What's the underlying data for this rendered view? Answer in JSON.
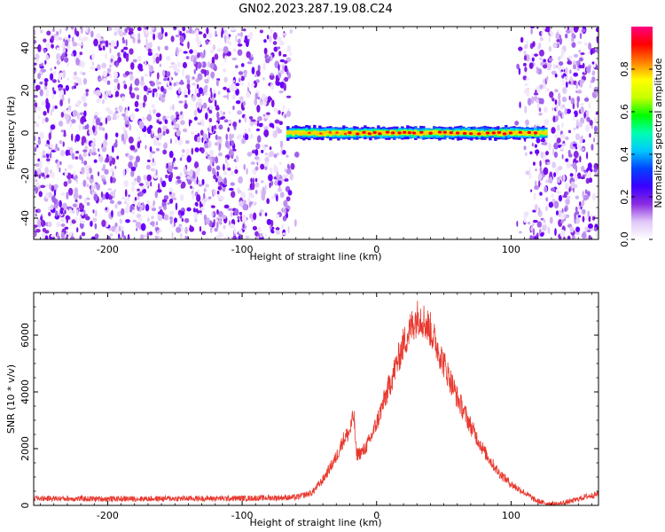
{
  "title": "GN02.2023.287.19.08.C24",
  "chart_data": [
    {
      "type": "heatmap",
      "xlabel": "Height of straight line (km)",
      "ylabel": "Frequency (Hz)",
      "xlim": [
        -255,
        165
      ],
      "ylim": [
        -50,
        50
      ],
      "xticks": [
        -200,
        -100,
        0,
        100
      ],
      "yticks": [
        -40,
        -20,
        0,
        20,
        40
      ],
      "blank_region_x": [
        -65,
        110
      ],
      "signal_band": {
        "x_start": -67,
        "x_end": 125,
        "frequency": 0,
        "peak_amplitude": 0.95
      },
      "colorbar": {
        "label": "Normalized spectral amplitude",
        "range": [
          0,
          1
        ],
        "ticks": [
          0.0,
          0.2,
          0.4,
          0.6,
          0.8
        ],
        "colors": [
          "#ffffff",
          "#e0c8f8",
          "#8a2be2",
          "#3a00ff",
          "#0044ff",
          "#00c8ff",
          "#00ffb0",
          "#00ff00",
          "#c8ff00",
          "#ffff00",
          "#ff7f00",
          "#ff0000",
          "#ff0080"
        ]
      }
    },
    {
      "type": "line",
      "xlabel": "Height of straight line (km)",
      "ylabel": "SNR (10 * v/v)",
      "xlim": [
        -255,
        165
      ],
      "ylim": [
        0,
        7500
      ],
      "xticks": [
        -200,
        -100,
        0,
        100
      ],
      "yticks": [
        0,
        2000,
        4000,
        6000
      ],
      "color": "#e8382e",
      "key_points": [
        [
          -255,
          250
        ],
        [
          -200,
          230
        ],
        [
          -150,
          240
        ],
        [
          -100,
          250
        ],
        [
          -60,
          280
        ],
        [
          -48,
          450
        ],
        [
          -40,
          900
        ],
        [
          -30,
          1700
        ],
        [
          -25,
          2300
        ],
        [
          -20,
          2600
        ],
        [
          -17,
          3200
        ],
        [
          -15,
          1800
        ],
        [
          -10,
          1900
        ],
        [
          -5,
          2300
        ],
        [
          0,
          2900
        ],
        [
          10,
          4300
        ],
        [
          20,
          5700
        ],
        [
          28,
          6500
        ],
        [
          32,
          6700
        ],
        [
          40,
          6200
        ],
        [
          50,
          5000
        ],
        [
          60,
          3800
        ],
        [
          70,
          2800
        ],
        [
          80,
          1900
        ],
        [
          90,
          1200
        ],
        [
          100,
          750
        ],
        [
          110,
          450
        ],
        [
          118,
          180
        ],
        [
          125,
          80
        ],
        [
          135,
          50
        ],
        [
          145,
          150
        ],
        [
          155,
          300
        ],
        [
          165,
          400
        ]
      ]
    }
  ]
}
